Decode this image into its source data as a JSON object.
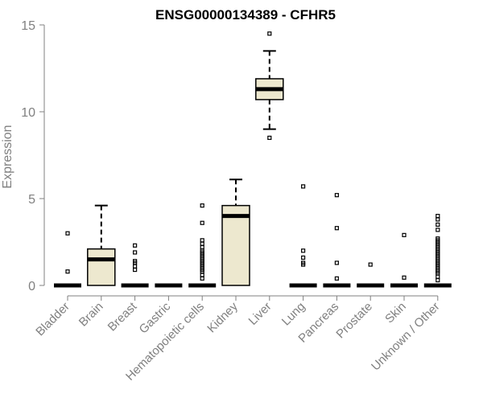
{
  "chart_data": {
    "type": "boxplot",
    "title": "ENSG00000134389 - CFHR5",
    "xlabel": "",
    "ylabel": "Expression",
    "ylim": [
      0,
      15
    ],
    "yticks": [
      0,
      5,
      10,
      15
    ],
    "grid": false,
    "colors": {
      "box_fill": "#ede8cf",
      "box_stroke": "#000000",
      "axis": "#808080"
    },
    "categories": [
      "Bladder",
      "Brain",
      "Breast",
      "Gastric",
      "Hematopoietic cells",
      "Kidney",
      "Liver",
      "Lung",
      "Pancreas",
      "Prostate",
      "Skin",
      "Unknown / Other"
    ],
    "boxes": [
      {
        "category": "Bladder",
        "min": 0,
        "q1": 0,
        "median": 0,
        "q3": 0,
        "max": 0,
        "outliers": [
          0.8,
          3.0
        ]
      },
      {
        "category": "Brain",
        "min": 0,
        "q1": 0,
        "median": 1.5,
        "q3": 2.1,
        "max": 4.6,
        "outliers": []
      },
      {
        "category": "Breast",
        "min": 0,
        "q1": 0,
        "median": 0,
        "q3": 0,
        "max": 0,
        "outliers": [
          0.9,
          1.1,
          1.3,
          1.4,
          1.9,
          2.3
        ]
      },
      {
        "category": "Gastric",
        "min": 0,
        "q1": 0,
        "median": 0,
        "q3": 0,
        "max": 0,
        "outliers": []
      },
      {
        "category": "Hematopoietic cells",
        "min": 0,
        "q1": 0,
        "median": 0,
        "q3": 0,
        "max": 0,
        "outliers": [
          0.4,
          0.6,
          0.8,
          0.9,
          1.0,
          1.1,
          1.2,
          1.3,
          1.4,
          1.5,
          1.6,
          1.7,
          1.8,
          1.9,
          2.0,
          2.2,
          2.4,
          2.6,
          3.6,
          4.6
        ]
      },
      {
        "category": "Kidney",
        "min": 0,
        "q1": 0,
        "median": 4.0,
        "q3": 4.6,
        "max": 6.1,
        "outliers": []
      },
      {
        "category": "Liver",
        "min": 9.0,
        "q1": 10.7,
        "median": 11.3,
        "q3": 11.9,
        "max": 13.5,
        "outliers": [
          8.5,
          14.5
        ]
      },
      {
        "category": "Lung",
        "min": 0,
        "q1": 0,
        "median": 0,
        "q3": 0,
        "max": 0,
        "outliers": [
          1.2,
          1.3,
          1.6,
          2.0,
          5.7
        ]
      },
      {
        "category": "Pancreas",
        "min": 0,
        "q1": 0,
        "median": 0,
        "q3": 0,
        "max": 0,
        "outliers": [
          0.4,
          1.3,
          3.3,
          5.2
        ]
      },
      {
        "category": "Prostate",
        "min": 0,
        "q1": 0,
        "median": 0,
        "q3": 0,
        "max": 0,
        "outliers": [
          1.2
        ]
      },
      {
        "category": "Skin",
        "min": 0,
        "q1": 0,
        "median": 0,
        "q3": 0,
        "max": 0,
        "outliers": [
          0.45,
          2.9
        ]
      },
      {
        "category": "Unknown / Other",
        "min": 0,
        "q1": 0,
        "median": 0,
        "q3": 0,
        "max": 0,
        "outliers": [
          0.3,
          0.5,
          0.7,
          0.8,
          0.9,
          1.0,
          1.1,
          1.2,
          1.3,
          1.4,
          1.5,
          1.6,
          1.7,
          1.8,
          1.9,
          2.0,
          2.1,
          2.2,
          2.3,
          2.4,
          2.5,
          2.6,
          2.7,
          3.2,
          3.5,
          3.8,
          4.0
        ]
      }
    ]
  }
}
